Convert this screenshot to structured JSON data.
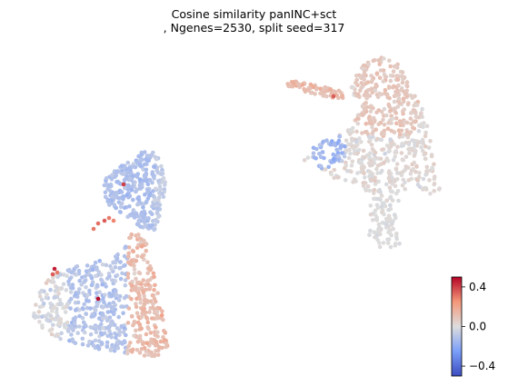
{
  "chart_data": {
    "type": "scatter",
    "title_line1": "Cosine similarity panINC+sct",
    "title_line2": ", Ngenes=2530, split seed=317",
    "xlabel": "",
    "ylabel": "",
    "axes_visible": false,
    "colormap": "coolwarm",
    "colorbar": {
      "vmin": -0.5,
      "vmax": 0.5,
      "ticks": [
        0.4,
        0.0,
        -0.4
      ],
      "tick_labels": [
        "0.4",
        "0.0",
        "−0.4"
      ],
      "placement": "bottom-right"
    },
    "clusters": [
      {
        "id": "right-cluster",
        "value_summary": "mostly near 0.0 to slightly positive (~0.0 to 0.15), a few points ~0.25-0.35 and a small negative patch ~ -0.1 to -0.3",
        "points": 820
      },
      {
        "id": "left-cluster",
        "value_summary": "mostly slightly negative (~ -0.1 to -0.2) in upper/left, positive (~0.15 to 0.3) along right edge, a few outliers ~0.4-0.5",
        "points": 980
      }
    ]
  }
}
